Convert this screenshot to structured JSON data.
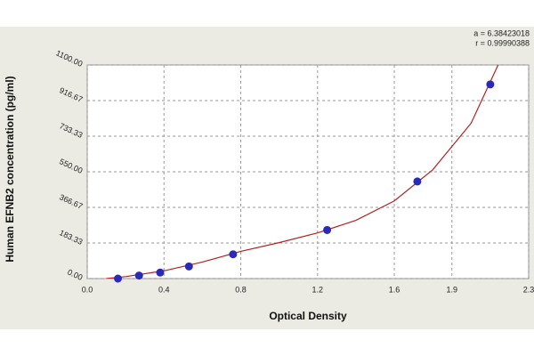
{
  "chart_data": {
    "type": "scatter",
    "xlabel": "Optical Density",
    "ylabel": "Human EFNB2 concentration (pg/ml)",
    "annotations": [
      "a = 6.38423018",
      "r = 0.99990388"
    ],
    "x": [
      0.16,
      0.27,
      0.38,
      0.53,
      0.76,
      1.25,
      1.72,
      2.1
    ],
    "values": [
      0,
      15.6,
      31.2,
      62.5,
      125,
      250,
      500,
      1000
    ],
    "color": "#2a2ab8",
    "fit": {
      "color": "#b22222",
      "x": [
        0.1,
        0.2,
        0.4,
        0.6,
        0.8,
        1.0,
        1.2,
        1.4,
        1.6,
        1.8,
        2.0,
        2.15
      ],
      "values": [
        0,
        10,
        40,
        85,
        140,
        185,
        235,
        300,
        400,
        560,
        800,
        1120
      ]
    },
    "xlim": [
      0,
      2.3
    ],
    "xticks": [
      {
        "value": 0,
        "label": "0.0"
      },
      0.4,
      0.8,
      1.2,
      1.6,
      1.9,
      2.3
    ],
    "ylim": [
      0,
      1100
    ],
    "yticks": [
      {
        "value": 0,
        "label": "0.00"
      },
      183.33,
      366.67,
      {
        "value": 550,
        "label": "550.00"
      },
      733.33,
      916.67,
      {
        "value": 1100,
        "label": "1100.00"
      }
    ],
    "grid": true
  }
}
